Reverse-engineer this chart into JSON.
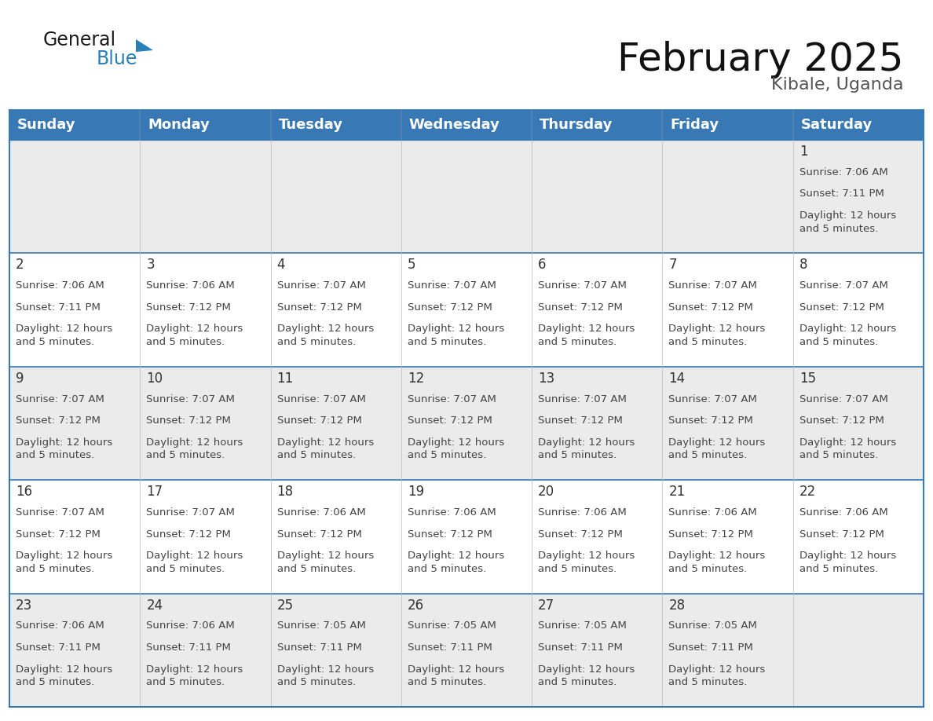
{
  "title": "February 2025",
  "subtitle": "Kibale, Uganda",
  "header_color": "#3878b4",
  "header_text_color": "#FFFFFF",
  "day_names": [
    "Sunday",
    "Monday",
    "Tuesday",
    "Wednesday",
    "Thursday",
    "Friday",
    "Saturday"
  ],
  "bg_color": "#FFFFFF",
  "row0_color": "#EBEBEB",
  "row1_color": "#FFFFFF",
  "border_color": "#3878b4",
  "cell_text_color": "#444444",
  "number_color": "#333333",
  "days": [
    {
      "day": 1,
      "col": 6,
      "row": 0,
      "sunrise": "7:06 AM",
      "sunset": "7:11 PM",
      "daylight": "12 hours\nand 5 minutes."
    },
    {
      "day": 2,
      "col": 0,
      "row": 1,
      "sunrise": "7:06 AM",
      "sunset": "7:11 PM",
      "daylight": "12 hours\nand 5 minutes."
    },
    {
      "day": 3,
      "col": 1,
      "row": 1,
      "sunrise": "7:06 AM",
      "sunset": "7:12 PM",
      "daylight": "12 hours\nand 5 minutes."
    },
    {
      "day": 4,
      "col": 2,
      "row": 1,
      "sunrise": "7:07 AM",
      "sunset": "7:12 PM",
      "daylight": "12 hours\nand 5 minutes."
    },
    {
      "day": 5,
      "col": 3,
      "row": 1,
      "sunrise": "7:07 AM",
      "sunset": "7:12 PM",
      "daylight": "12 hours\nand 5 minutes."
    },
    {
      "day": 6,
      "col": 4,
      "row": 1,
      "sunrise": "7:07 AM",
      "sunset": "7:12 PM",
      "daylight": "12 hours\nand 5 minutes."
    },
    {
      "day": 7,
      "col": 5,
      "row": 1,
      "sunrise": "7:07 AM",
      "sunset": "7:12 PM",
      "daylight": "12 hours\nand 5 minutes."
    },
    {
      "day": 8,
      "col": 6,
      "row": 1,
      "sunrise": "7:07 AM",
      "sunset": "7:12 PM",
      "daylight": "12 hours\nand 5 minutes."
    },
    {
      "day": 9,
      "col": 0,
      "row": 2,
      "sunrise": "7:07 AM",
      "sunset": "7:12 PM",
      "daylight": "12 hours\nand 5 minutes."
    },
    {
      "day": 10,
      "col": 1,
      "row": 2,
      "sunrise": "7:07 AM",
      "sunset": "7:12 PM",
      "daylight": "12 hours\nand 5 minutes."
    },
    {
      "day": 11,
      "col": 2,
      "row": 2,
      "sunrise": "7:07 AM",
      "sunset": "7:12 PM",
      "daylight": "12 hours\nand 5 minutes."
    },
    {
      "day": 12,
      "col": 3,
      "row": 2,
      "sunrise": "7:07 AM",
      "sunset": "7:12 PM",
      "daylight": "12 hours\nand 5 minutes."
    },
    {
      "day": 13,
      "col": 4,
      "row": 2,
      "sunrise": "7:07 AM",
      "sunset": "7:12 PM",
      "daylight": "12 hours\nand 5 minutes."
    },
    {
      "day": 14,
      "col": 5,
      "row": 2,
      "sunrise": "7:07 AM",
      "sunset": "7:12 PM",
      "daylight": "12 hours\nand 5 minutes."
    },
    {
      "day": 15,
      "col": 6,
      "row": 2,
      "sunrise": "7:07 AM",
      "sunset": "7:12 PM",
      "daylight": "12 hours\nand 5 minutes."
    },
    {
      "day": 16,
      "col": 0,
      "row": 3,
      "sunrise": "7:07 AM",
      "sunset": "7:12 PM",
      "daylight": "12 hours\nand 5 minutes."
    },
    {
      "day": 17,
      "col": 1,
      "row": 3,
      "sunrise": "7:07 AM",
      "sunset": "7:12 PM",
      "daylight": "12 hours\nand 5 minutes."
    },
    {
      "day": 18,
      "col": 2,
      "row": 3,
      "sunrise": "7:06 AM",
      "sunset": "7:12 PM",
      "daylight": "12 hours\nand 5 minutes."
    },
    {
      "day": 19,
      "col": 3,
      "row": 3,
      "sunrise": "7:06 AM",
      "sunset": "7:12 PM",
      "daylight": "12 hours\nand 5 minutes."
    },
    {
      "day": 20,
      "col": 4,
      "row": 3,
      "sunrise": "7:06 AM",
      "sunset": "7:12 PM",
      "daylight": "12 hours\nand 5 minutes."
    },
    {
      "day": 21,
      "col": 5,
      "row": 3,
      "sunrise": "7:06 AM",
      "sunset": "7:12 PM",
      "daylight": "12 hours\nand 5 minutes."
    },
    {
      "day": 22,
      "col": 6,
      "row": 3,
      "sunrise": "7:06 AM",
      "sunset": "7:12 PM",
      "daylight": "12 hours\nand 5 minutes."
    },
    {
      "day": 23,
      "col": 0,
      "row": 4,
      "sunrise": "7:06 AM",
      "sunset": "7:11 PM",
      "daylight": "12 hours\nand 5 minutes."
    },
    {
      "day": 24,
      "col": 1,
      "row": 4,
      "sunrise": "7:06 AM",
      "sunset": "7:11 PM",
      "daylight": "12 hours\nand 5 minutes."
    },
    {
      "day": 25,
      "col": 2,
      "row": 4,
      "sunrise": "7:05 AM",
      "sunset": "7:11 PM",
      "daylight": "12 hours\nand 5 minutes."
    },
    {
      "day": 26,
      "col": 3,
      "row": 4,
      "sunrise": "7:05 AM",
      "sunset": "7:11 PM",
      "daylight": "12 hours\nand 5 minutes."
    },
    {
      "day": 27,
      "col": 4,
      "row": 4,
      "sunrise": "7:05 AM",
      "sunset": "7:11 PM",
      "daylight": "12 hours\nand 5 minutes."
    },
    {
      "day": 28,
      "col": 5,
      "row": 4,
      "sunrise": "7:05 AM",
      "sunset": "7:11 PM",
      "daylight": "12 hours\nand 5 minutes."
    }
  ],
  "num_rows": 5,
  "logo_general_color": "#1a1a1a",
  "logo_blue_color": "#2980b9",
  "logo_triangle_color": "#2980b9",
  "title_fontsize": 36,
  "subtitle_fontsize": 16,
  "header_fontsize": 13,
  "day_num_fontsize": 12,
  "cell_fontsize": 9.5
}
